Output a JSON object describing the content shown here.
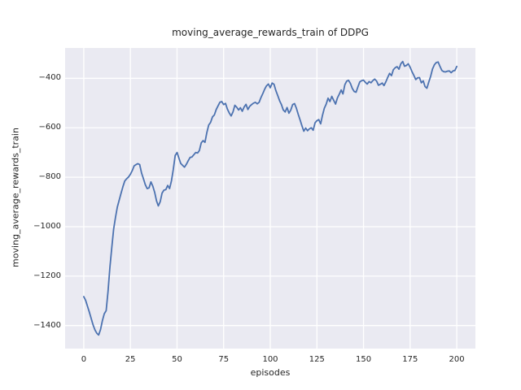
{
  "title": "moving_average_rewards_train of DDPG",
  "colors": {
    "line": "#4c72b0",
    "axes_background": "#eaeaf2",
    "grid": "#ffffff",
    "figure_background": "#ffffff",
    "text": "#262626"
  },
  "chart_data": {
    "type": "line",
    "title": "moving_average_rewards_train of DDPG",
    "xlabel": "episodes",
    "ylabel": "moving_average_rewards_train",
    "xlim": [
      -10,
      210
    ],
    "ylim": [
      -1493,
      -277
    ],
    "grid": true,
    "legend": null,
    "x_ticks": [
      0,
      25,
      50,
      75,
      100,
      125,
      150,
      175,
      200
    ],
    "x_tick_labels": [
      "0",
      "25",
      "50",
      "75",
      "100",
      "125",
      "150",
      "175",
      "200"
    ],
    "y_ticks": [
      -400,
      -600,
      -800,
      -1000,
      -1200,
      -1400
    ],
    "y_tick_labels": [
      "−400",
      "−600",
      "−800",
      "−1000",
      "−1200",
      "−1400"
    ],
    "series": [
      {
        "name": "moving_average_rewards_train",
        "x_start": 0,
        "x_step": 1,
        "values": [
          -1283,
          -1298,
          -1322,
          -1346,
          -1372,
          -1398,
          -1418,
          -1431,
          -1438,
          -1416,
          -1380,
          -1352,
          -1340,
          -1262,
          -1165,
          -1085,
          -1010,
          -962,
          -921,
          -893,
          -865,
          -838,
          -815,
          -806,
          -799,
          -788,
          -773,
          -754,
          -749,
          -745,
          -749,
          -783,
          -806,
          -830,
          -846,
          -843,
          -819,
          -836,
          -861,
          -896,
          -916,
          -899,
          -864,
          -852,
          -850,
          -833,
          -846,
          -815,
          -768,
          -712,
          -700,
          -722,
          -744,
          -752,
          -759,
          -748,
          -733,
          -720,
          -718,
          -709,
          -700,
          -702,
          -692,
          -661,
          -652,
          -659,
          -619,
          -589,
          -578,
          -556,
          -548,
          -526,
          -511,
          -497,
          -494,
          -506,
          -501,
          -524,
          -540,
          -552,
          -536,
          -509,
          -517,
          -528,
          -519,
          -533,
          -516,
          -505,
          -526,
          -513,
          -506,
          -500,
          -497,
          -503,
          -497,
          -478,
          -462,
          -444,
          -430,
          -423,
          -438,
          -419,
          -424,
          -450,
          -470,
          -491,
          -506,
          -528,
          -536,
          -518,
          -541,
          -528,
          -506,
          -502,
          -521,
          -546,
          -569,
          -592,
          -614,
          -601,
          -612,
          -604,
          -600,
          -610,
          -580,
          -571,
          -567,
          -584,
          -550,
          -521,
          -504,
          -480,
          -494,
          -473,
          -489,
          -504,
          -479,
          -464,
          -447,
          -463,
          -426,
          -411,
          -408,
          -421,
          -441,
          -453,
          -456,
          -434,
          -414,
          -409,
          -407,
          -416,
          -423,
          -413,
          -418,
          -409,
          -403,
          -411,
          -428,
          -424,
          -419,
          -429,
          -414,
          -396,
          -380,
          -389,
          -365,
          -357,
          -353,
          -363,
          -341,
          -332,
          -351,
          -348,
          -341,
          -355,
          -373,
          -388,
          -405,
          -398,
          -397,
          -418,
          -410,
          -433,
          -440,
          -415,
          -392,
          -362,
          -345,
          -336,
          -334,
          -352,
          -368,
          -373,
          -374,
          -371,
          -370,
          -377,
          -370,
          -368,
          -352
        ]
      }
    ]
  }
}
